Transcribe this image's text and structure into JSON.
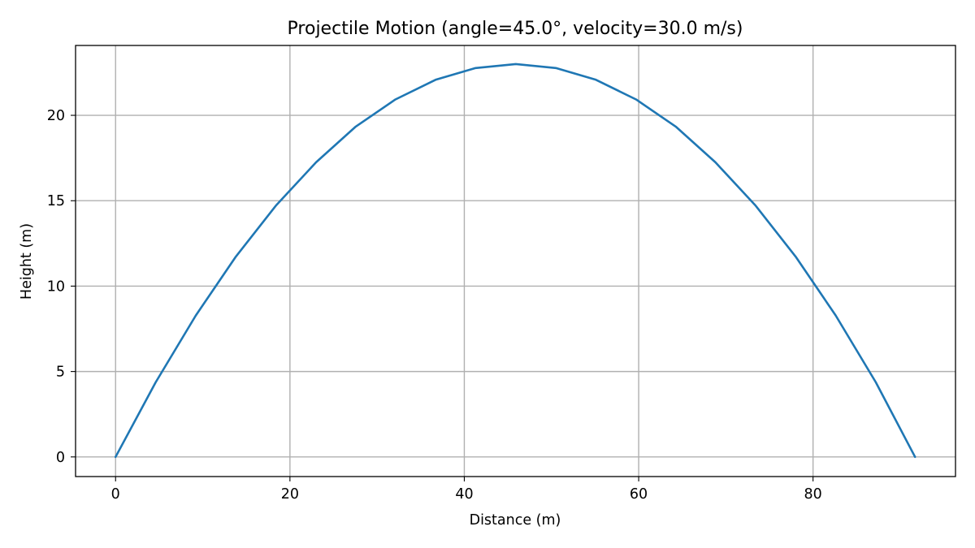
{
  "chart_data": {
    "type": "line",
    "title": "Projectile Motion (angle=45.0°, velocity=30.0 m/s)",
    "xlabel": "Distance (m)",
    "ylabel": "Height (m)",
    "xlim": [
      -4.59,
      96.34
    ],
    "ylim": [
      -1.15,
      24.09
    ],
    "xticks": [
      0,
      20,
      40,
      60,
      80
    ],
    "yticks": [
      0,
      5,
      10,
      15,
      20
    ],
    "xtick_labels": [
      "0",
      "20",
      "40",
      "60",
      "80"
    ],
    "ytick_labels": [
      "0",
      "5",
      "10",
      "15",
      "20"
    ],
    "grid": true,
    "legend": "none",
    "colors": {
      "line": "#1f77b4",
      "grid": "#b0b0b0",
      "axes": "#000000"
    },
    "series": [
      {
        "x": [
          0,
          4.6,
          9.2,
          13.8,
          18.4,
          23.0,
          27.5,
          32.1,
          36.7,
          41.3,
          45.9,
          50.5,
          55.1,
          59.7,
          64.3,
          68.8,
          73.4,
          78.0,
          82.6,
          87.2,
          91.7
        ],
        "y": [
          0,
          4.37,
          8.28,
          11.73,
          14.72,
          17.25,
          19.32,
          20.93,
          22.08,
          22.77,
          23.0,
          22.77,
          22.08,
          20.93,
          19.32,
          17.25,
          14.72,
          11.73,
          8.28,
          4.37,
          0
        ]
      }
    ]
  }
}
